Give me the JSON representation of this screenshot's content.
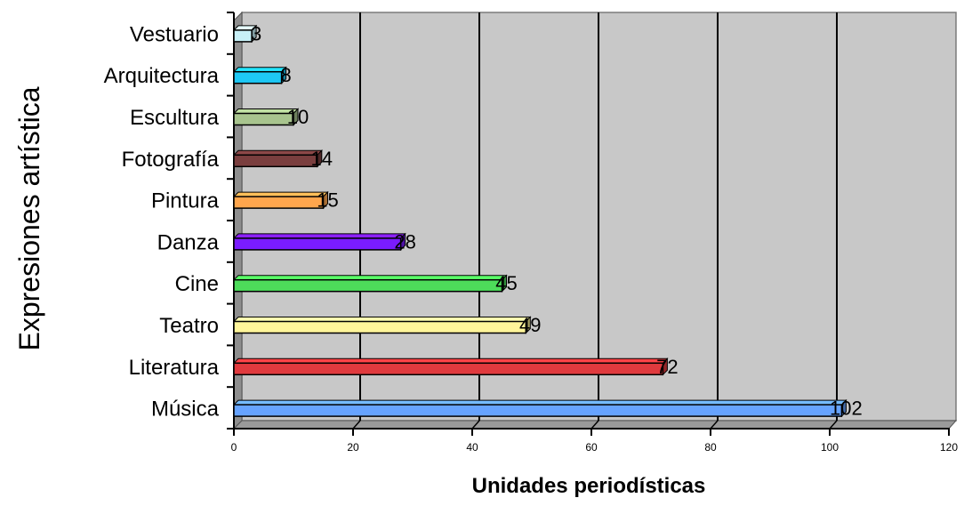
{
  "chart_data": {
    "type": "bar",
    "orientation": "horizontal",
    "title": "",
    "xlabel": "Unidades periodísticas",
    "ylabel": "Expresiones artística",
    "xlim": [
      0,
      120
    ],
    "xticks": [
      "0",
      "20",
      "40",
      "60",
      "80",
      "100",
      "120"
    ],
    "grid": true,
    "legend": "none",
    "categories": [
      "Música",
      "Literatura",
      "Teatro",
      "Cine",
      "Danza",
      "Pintura",
      "Fotografía",
      "Escultura",
      "Arquitectura",
      "Vestuario"
    ],
    "values": [
      102,
      72,
      49,
      45,
      28,
      15,
      14,
      10,
      8,
      3
    ],
    "data_labels": [
      "102",
      "72",
      "49",
      "45",
      "28",
      "15",
      "14",
      "10",
      "8",
      "3"
    ],
    "colors": [
      "#66a3ff",
      "#e03a3e",
      "#fff59a",
      "#4ddc5a",
      "#7a1cff",
      "#ffa64d",
      "#7a3e3e",
      "#a8c48e",
      "#1ec8f5",
      "#c7f0f7"
    ],
    "plot_background": "#c8c8c8"
  }
}
